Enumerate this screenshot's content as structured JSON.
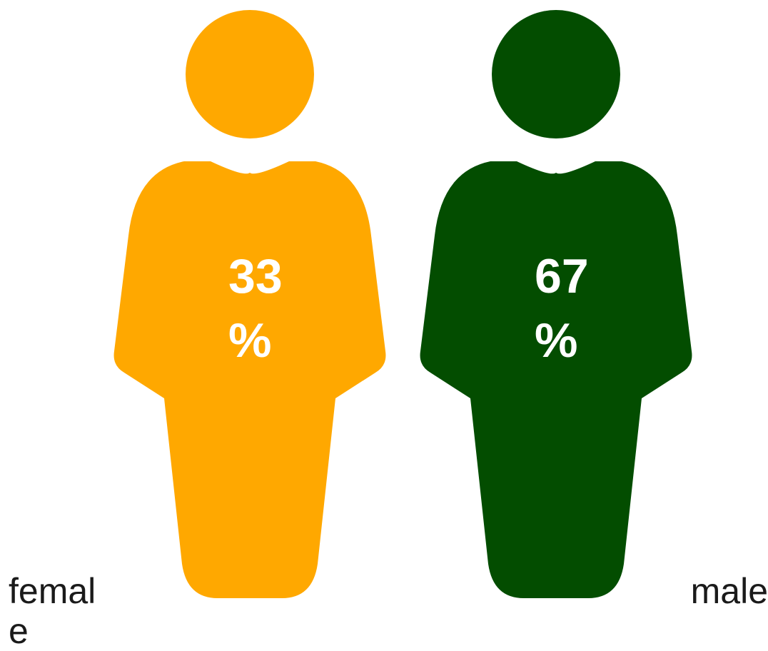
{
  "chart_data": {
    "type": "pictograph",
    "categories": [
      "female",
      "male"
    ],
    "values": [
      33,
      67
    ],
    "value_unit": "%",
    "colors": [
      "#ffa800",
      "#034d00"
    ],
    "icon": "person-icon",
    "title": "",
    "xlabel": "",
    "ylabel": "",
    "grid": false,
    "legend": "none"
  },
  "figures": [
    {
      "category": "female",
      "value_num": "33",
      "value_pct": "%",
      "color": "#ffa800"
    },
    {
      "category": "male",
      "value_num": "67",
      "value_pct": "%",
      "color": "#034d00"
    }
  ]
}
